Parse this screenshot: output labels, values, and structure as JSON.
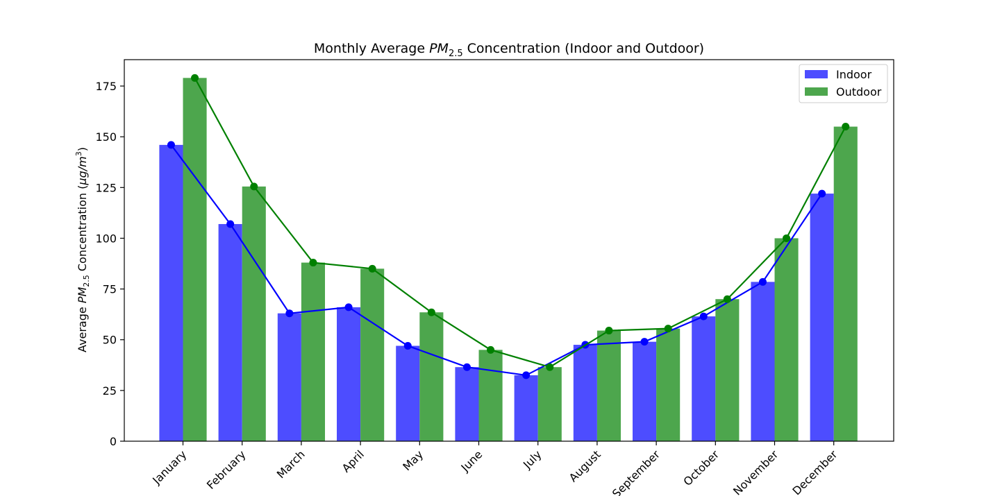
{
  "chart_data": {
    "type": "bar",
    "title_prefix": "Monthly Average ",
    "title_math_base": "PM",
    "title_math_sub": "2.5",
    "title_suffix": " Concentration (Indoor and Outdoor)",
    "ylabel_prefix": "Average ",
    "ylabel_math_base": "PM",
    "ylabel_math_sub": "2.5",
    "ylabel_mid": " Concentration (",
    "ylabel_unit_mu": "μ",
    "ylabel_unit_g": "g",
    "ylabel_unit_slash": "/",
    "ylabel_unit_m": "m",
    "ylabel_unit_exp": "3",
    "ylabel_close": ")",
    "xlabel": "",
    "ylim": [
      0,
      188
    ],
    "yticks": [
      0,
      25,
      50,
      75,
      100,
      125,
      150,
      175
    ],
    "categories": [
      "January",
      "February",
      "March",
      "April",
      "May",
      "June",
      "July",
      "August",
      "September",
      "October",
      "November",
      "December"
    ],
    "series": [
      {
        "name": "Indoor",
        "color": "#0000ff",
        "bar_color": "#4d4dff",
        "values": [
          146,
          107,
          63,
          66,
          47,
          36.5,
          32.5,
          47.5,
          49,
          61.5,
          78.5,
          122
        ]
      },
      {
        "name": "Outdoor",
        "color": "#008000",
        "bar_color": "#4da64d",
        "values": [
          179,
          125.5,
          88,
          85,
          63.5,
          45,
          36.5,
          54.5,
          55.5,
          70,
          100,
          155
        ]
      }
    ],
    "legend_position": "top-right",
    "grid": false,
    "line_overlay": true
  }
}
